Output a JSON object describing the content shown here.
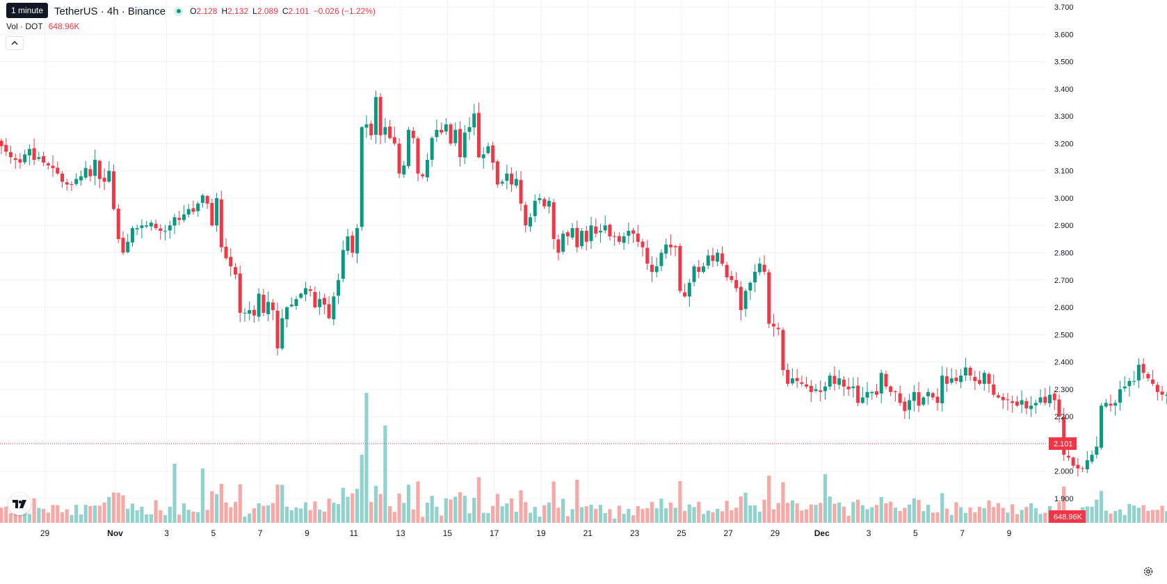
{
  "header": {
    "tooltip": "1 minute",
    "symbol": "TetherUS · 4h · Binance",
    "o_label": "O",
    "o_value": "2.128",
    "h_label": "H",
    "h_value": "2.132",
    "l_label": "L",
    "l_value": "2.089",
    "c_label": "C",
    "c_value": "2.101",
    "change": "−0.026 (−1.22%)"
  },
  "volume_legend": {
    "label": "Vol · DOT",
    "value": "648.96K"
  },
  "price_scale": {
    "ticks": [
      "3.700",
      "3.600",
      "3.500",
      "3.400",
      "3.300",
      "3.200",
      "3.100",
      "3.000",
      "2.900",
      "2.800",
      "2.700",
      "2.600",
      "2.500",
      "2.400",
      "2.300",
      "2.200",
      "2.100",
      "2.000",
      "1.900"
    ],
    "current_price_label": "2.101",
    "current_volume_label": "648.96K"
  },
  "time_scale": {
    "ticks": [
      "29",
      "Nov",
      "3",
      "5",
      "7",
      "9",
      "11",
      "13",
      "15",
      "17",
      "19",
      "21",
      "23",
      "25",
      "27",
      "29",
      "Dec",
      "3",
      "5",
      "7",
      "9"
    ]
  },
  "colors": {
    "up": "#089981",
    "down": "#f23645",
    "vol_up": "#92d2cc",
    "vol_down": "#f7a9a7",
    "grid": "#f0f3fa"
  },
  "icons": {
    "logo": "tradingview-logo-icon",
    "settings": "settings-gear-icon",
    "collapse": "chevron-up-icon"
  },
  "chart_data": {
    "type": "candlestick",
    "interval": "4h",
    "y_range": [
      1.85,
      3.72
    ],
    "current_price": 2.101,
    "candle_close": [
      3.19,
      3.17,
      3.15,
      3.14,
      3.13,
      3.16,
      3.18,
      3.14,
      3.15,
      3.13,
      3.12,
      3.11,
      3.09,
      3.06,
      3.05,
      3.05,
      3.07,
      3.08,
      3.11,
      3.08,
      3.14,
      3.07,
      3.06,
      3.1,
      2.96,
      2.85,
      2.8,
      2.84,
      2.89,
      2.89,
      2.9,
      2.9,
      2.91,
      2.89,
      2.88,
      2.88,
      2.9,
      2.93,
      2.92,
      2.94,
      2.96,
      2.95,
      2.98,
      3.01,
      2.98,
      2.9,
      3.0,
      2.82,
      2.78,
      2.75,
      2.72,
      2.58,
      2.58,
      2.59,
      2.57,
      2.65,
      2.58,
      2.62,
      2.59,
      2.45,
      2.56,
      2.6,
      2.61,
      2.63,
      2.65,
      2.67,
      2.66,
      2.6,
      2.63,
      2.61,
      2.56,
      2.64,
      2.7,
      2.81,
      2.86,
      2.8,
      2.89,
      3.26,
      3.27,
      3.23,
      3.37,
      3.23,
      3.26,
      3.22,
      3.2,
      3.09,
      3.12,
      3.25,
      3.22,
      3.09,
      3.08,
      3.14,
      3.22,
      3.25,
      3.24,
      3.27,
      3.2,
      3.25,
      3.15,
      3.24,
      3.26,
      3.31,
      3.15,
      3.16,
      3.19,
      3.13,
      3.05,
      3.06,
      3.09,
      3.05,
      3.07,
      2.98,
      2.9,
      2.93,
      2.99,
      3.0,
      2.97,
      2.99,
      2.85,
      2.8,
      2.87,
      2.86,
      2.89,
      2.82,
      2.88,
      2.84,
      2.9,
      2.87,
      2.88,
      2.9,
      2.86,
      2.86,
      2.84,
      2.86,
      2.88,
      2.87,
      2.84,
      2.82,
      2.76,
      2.73,
      2.75,
      2.8,
      2.83,
      2.82,
      2.82,
      2.66,
      2.64,
      2.69,
      2.75,
      2.73,
      2.75,
      2.79,
      2.77,
      2.8,
      2.76,
      2.71,
      2.7,
      2.67,
      2.59,
      2.66,
      2.69,
      2.73,
      2.76,
      2.73,
      2.54,
      2.53,
      2.52,
      2.37,
      2.32,
      2.34,
      2.33,
      2.32,
      2.31,
      2.29,
      2.3,
      2.29,
      2.31,
      2.35,
      2.32,
      2.34,
      2.31,
      2.3,
      2.31,
      2.25,
      2.27,
      2.29,
      2.29,
      2.28,
      2.36,
      2.31,
      2.29,
      2.29,
      2.25,
      2.22,
      2.26,
      2.29,
      2.24,
      2.27,
      2.29,
      2.27,
      2.25,
      2.35,
      2.32,
      2.34,
      2.33,
      2.35,
      2.38,
      2.35,
      2.33,
      2.32,
      2.36,
      2.32,
      2.28,
      2.27,
      2.26,
      2.26,
      2.25,
      2.24,
      2.26,
      2.23,
      2.24,
      2.25,
      2.27,
      2.25,
      2.28,
      2.26,
      2.2,
      2.06,
      2.05,
      2.02,
      2.01,
      2.01,
      2.04,
      2.06,
      2.09,
      2.24,
      2.25,
      2.24,
      2.25,
      2.3,
      2.31,
      2.33,
      2.33,
      2.39,
      2.36,
      2.34,
      2.32,
      2.29,
      2.28,
      2.28,
      2.25,
      2.21,
      2.12,
      2.13,
      2.12,
      2.11,
      2.13,
      2.12,
      2.15,
      2.14,
      2.16,
      2.15,
      2.15,
      2.12,
      2.09,
      2.15,
      2.11,
      2.14,
      2.15,
      2.14,
      2.13,
      2.13,
      2.12,
      2.101
    ]
  }
}
